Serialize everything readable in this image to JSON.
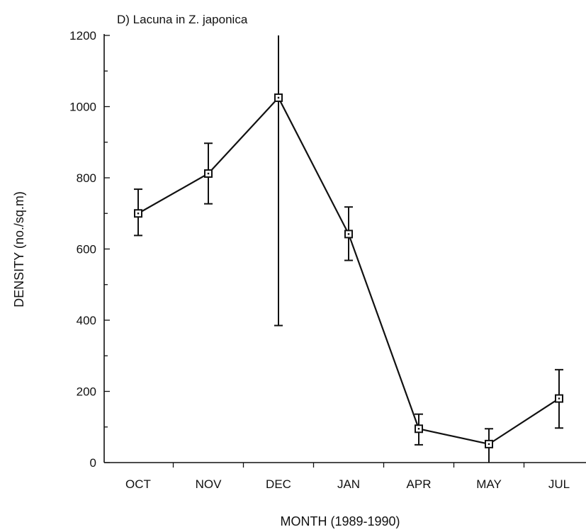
{
  "chart_data": {
    "type": "line",
    "title": "D) Lacuna in Z. japonica",
    "xlabel": "MONTH  (1989-1990)",
    "ylabel": "DENSITY  (no./sq.m)",
    "categories": [
      "OCT",
      "NOV",
      "DEC",
      "JAN",
      "APR",
      "MAY",
      "JUL"
    ],
    "ylim": [
      0,
      1200
    ],
    "yticks": [
      0,
      200,
      400,
      600,
      800,
      1000,
      1200
    ],
    "series": [
      {
        "values": [
          700,
          812,
          1025,
          642,
          95,
          52,
          180
        ],
        "error_low": [
          638,
          727,
          385,
          568,
          50,
          0,
          97
        ],
        "error_high": [
          768,
          897,
          1200,
          718,
          136,
          95,
          261
        ]
      }
    ],
    "grid": false,
    "legend": "none"
  }
}
